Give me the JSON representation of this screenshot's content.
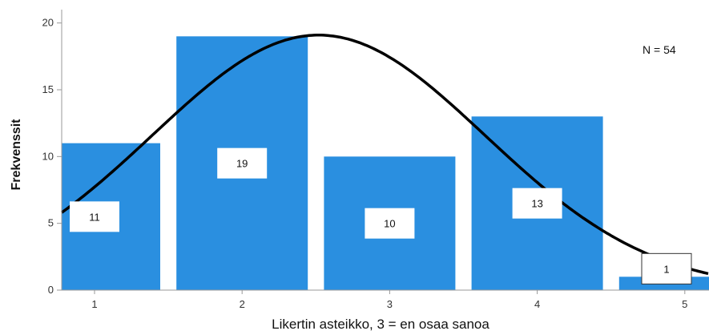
{
  "chart_data": {
    "type": "bar",
    "categories": [
      "1",
      "2",
      "3",
      "4",
      "5"
    ],
    "values": [
      11,
      19,
      10,
      13,
      1
    ],
    "data_labels": [
      "11",
      "19",
      "10",
      "13",
      "1"
    ],
    "xlabel": "Likertin asteikko, 3 = en osaa sanoa",
    "ylabel": "Frekvenssit",
    "y_ticks": [
      "0",
      "5",
      "10",
      "15",
      "20"
    ],
    "ylim": [
      0,
      21
    ],
    "annotation": "N = 54",
    "bar_color": "#2a8fe0",
    "curve_color": "#000000",
    "overlay": "normal-curve",
    "grid": false
  }
}
